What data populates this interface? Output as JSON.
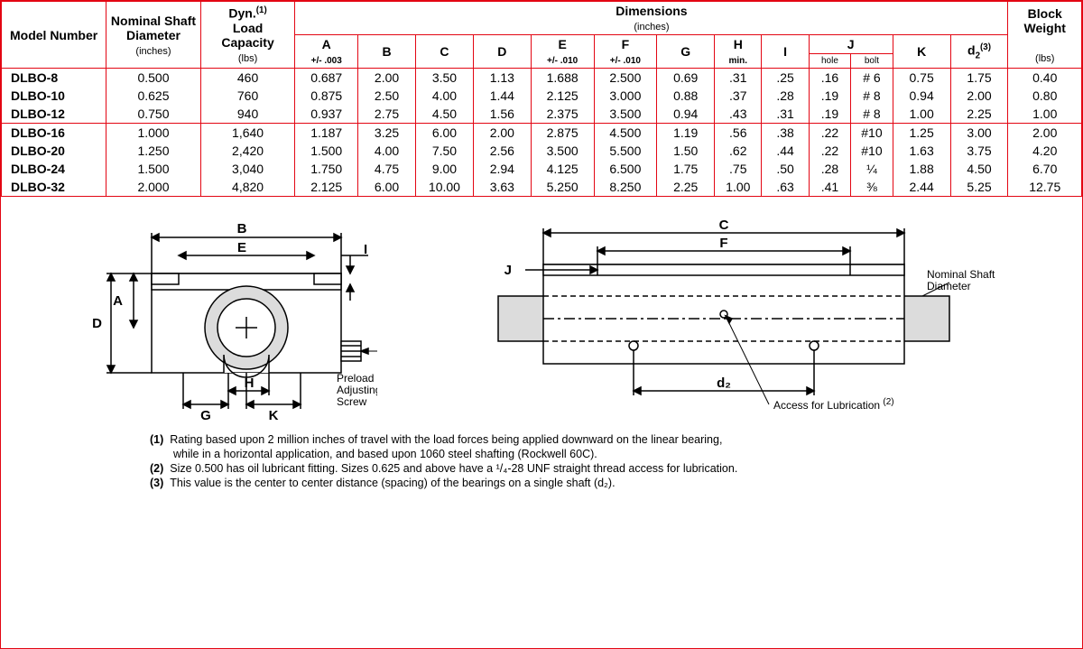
{
  "colors": {
    "border": "#e30613",
    "text": "#000000",
    "bg": "#ffffff",
    "diagram_fill": "#dcdcdc"
  },
  "headers": {
    "model": "Model Number",
    "shaft": "Nominal Shaft Diameter",
    "shaft_unit": "(inches)",
    "load": "Dyn.",
    "load_sup": "(1)",
    "load2": "Load Capacity",
    "load_unit": "(lbs)",
    "dims": "Dimensions",
    "dims_unit": "(inches)",
    "weight": "Block Weight",
    "weight_unit": "(lbs)",
    "A": "A",
    "A_tol": "+/- .003",
    "B": "B",
    "C": "C",
    "D": "D",
    "E": "E",
    "E_tol": "+/- .010",
    "F": "F",
    "F_tol": "+/- .010",
    "G": "G",
    "H": "H",
    "H_sub": "min.",
    "I": "I",
    "J": "J",
    "J_hole": "hole",
    "J_bolt": "bolt",
    "K": "K",
    "d2": "d",
    "d2_sub": "2",
    "d2_sup": "(3)"
  },
  "rows": [
    {
      "model": "DLBO-8",
      "shaft": "0.500",
      "load": "460",
      "A": "0.687",
      "B": "2.00",
      "C": "3.50",
      "D": "1.13",
      "E": "1.688",
      "F": "2.500",
      "G": "0.69",
      "H": ".31",
      "I": ".25",
      "Jh": ".16",
      "Jb": "# 6",
      "K": "0.75",
      "d2": "1.75",
      "wt": "0.40"
    },
    {
      "model": "DLBO-10",
      "shaft": "0.625",
      "load": "760",
      "A": "0.875",
      "B": "2.50",
      "C": "4.00",
      "D": "1.44",
      "E": "2.125",
      "F": "3.000",
      "G": "0.88",
      "H": ".37",
      "I": ".28",
      "Jh": ".19",
      "Jb": "# 8",
      "K": "0.94",
      "d2": "2.00",
      "wt": "0.80"
    },
    {
      "model": "DLBO-12",
      "shaft": "0.750",
      "load": "940",
      "A": "0.937",
      "B": "2.75",
      "C": "4.50",
      "D": "1.56",
      "E": "2.375",
      "F": "3.500",
      "G": "0.94",
      "H": ".43",
      "I": ".31",
      "Jh": ".19",
      "Jb": "# 8",
      "K": "1.00",
      "d2": "2.25",
      "wt": "1.00"
    },
    {
      "model": "DLBO-16",
      "shaft": "1.000",
      "load": "1,640",
      "A": "1.187",
      "B": "3.25",
      "C": "6.00",
      "D": "2.00",
      "E": "2.875",
      "F": "4.500",
      "G": "1.19",
      "H": ".56",
      "I": ".38",
      "Jh": ".22",
      "Jb": "#10",
      "K": "1.25",
      "d2": "3.00",
      "wt": "2.00"
    },
    {
      "model": "DLBO-20",
      "shaft": "1.250",
      "load": "2,420",
      "A": "1.500",
      "B": "4.00",
      "C": "7.50",
      "D": "2.56",
      "E": "3.500",
      "F": "5.500",
      "G": "1.50",
      "H": ".62",
      "I": ".44",
      "Jh": ".22",
      "Jb": "#10",
      "K": "1.63",
      "d2": "3.75",
      "wt": "4.20"
    },
    {
      "model": "DLBO-24",
      "shaft": "1.500",
      "load": "3,040",
      "A": "1.750",
      "B": "4.75",
      "C": "9.00",
      "D": "2.94",
      "E": "4.125",
      "F": "6.500",
      "G": "1.75",
      "H": ".75",
      "I": ".50",
      "Jh": ".28",
      "Jb": "¼",
      "K": "1.88",
      "d2": "4.50",
      "wt": "6.70"
    },
    {
      "model": "DLBO-32",
      "shaft": "2.000",
      "load": "4,820",
      "A": "2.125",
      "B": "6.00",
      "C": "10.00",
      "D": "3.63",
      "E": "5.250",
      "F": "8.250",
      "G": "2.25",
      "H": "1.00",
      "I": ".63",
      "Jh": ".41",
      "Jb": "⅜",
      "K": "2.44",
      "d2": "5.25",
      "wt": "12.75"
    }
  ],
  "diagram": {
    "front": {
      "labels": {
        "A": "A",
        "B": "B",
        "D": "D",
        "E": "E",
        "G": "G",
        "H": "H",
        "I": "I",
        "K": "K"
      },
      "preload": "Preload Adjusting Screw"
    },
    "side": {
      "labels": {
        "C": "C",
        "F": "F",
        "J": "J",
        "d2": "d₂"
      },
      "nominal": "Nominal Shaft Diameter",
      "lube": "Access for Lubrication",
      "lube_sup": "(2)"
    }
  },
  "notes": {
    "n1a": "Rating based upon 2 million inches of travel with the load forces being applied downward on the linear bearing,",
    "n1b": "while in a horizontal application, and based upon 1060 steel shafting (Rockwell 60C).",
    "n2": "Size 0.500 has oil lubricant fitting. Sizes 0.625 and above have a ¹/₄-28 UNF straight thread access for lubrication.",
    "n3": "This value is the center to center distance (spacing) of the bearings on a single shaft (d₂)."
  }
}
